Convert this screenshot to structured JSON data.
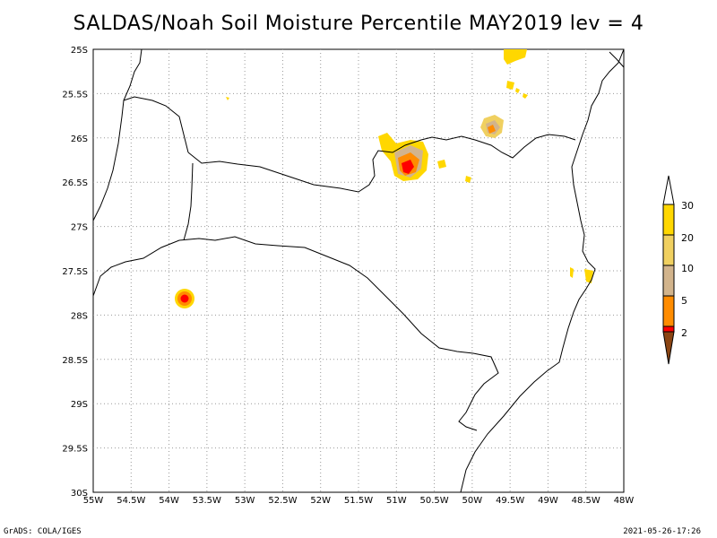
{
  "title": "SALDAS/Noah Soil Moisture Percentile MAY2019 lev = 4",
  "footer": {
    "left": "GrADS: COLA/IGES",
    "right": "2021-05-26-17:26"
  },
  "map": {
    "x_labels": [
      "55W",
      "54.5W",
      "54W",
      "53.5W",
      "53W",
      "52.5W",
      "52W",
      "51.5W",
      "51W",
      "50.5W",
      "50W",
      "49.5W",
      "49W",
      "48.5W",
      "48W"
    ],
    "y_labels": [
      "25S",
      "25.5S",
      "26S",
      "26.5S",
      "27S",
      "27.5S",
      "28S",
      "28.5S",
      "29S",
      "29.5S",
      "30S"
    ],
    "lon_range": [
      -55,
      -48
    ],
    "lat_range": [
      -30,
      -25
    ]
  },
  "colorbar": {
    "labels": [
      "30",
      "20",
      "10",
      "5",
      "2"
    ],
    "colors": [
      "#ffd700",
      "#f0d060",
      "#d2b48c",
      "#ff8c00",
      "#ff0000",
      "#8b4513"
    ]
  }
}
